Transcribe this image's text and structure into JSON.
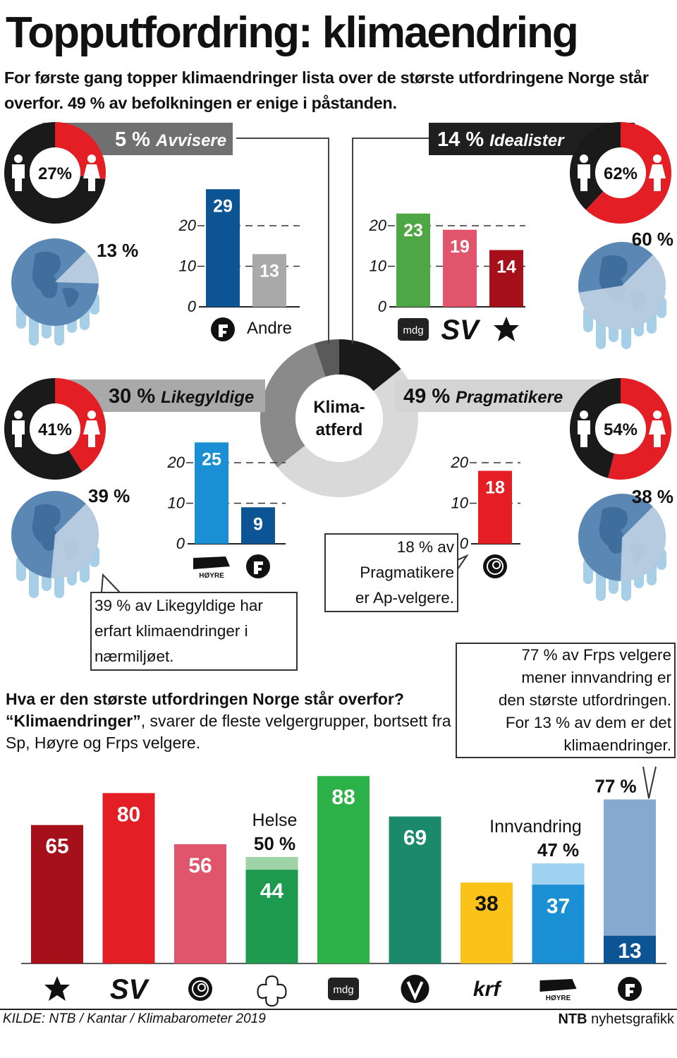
{
  "header": {
    "title": "Topputfordring: klimaendring",
    "subtitle": "For første gang topper klimaendringer lista over de største utfordringene Norge står overfor. 49 % av befolkningen er enige i påstanden."
  },
  "colors": {
    "red": "#e31e24",
    "black": "#1a1a1a",
    "panel_dark": "#1f1f1f",
    "panel_grey": "#a9a9a9",
    "frp_blue": "#0c5494",
    "grey_bar": "#a9a9a9",
    "mdg_green": "#4ea744",
    "sv_pink": "#e0546c",
    "rodt_red": "#a5101b",
    "hoyre_blue": "#1a8fd3",
    "ap_red": "#e51d24",
    "ocean": "#5a87b4",
    "land": "#c7d7e6",
    "ice": "#a8cfe8"
  },
  "center_donut": {
    "label_line1": "Klima-",
    "label_line2": "atferd",
    "segments": [
      {
        "name": "Avvisere",
        "value": 5,
        "color": "#5a5a5a"
      },
      {
        "name": "Idealister",
        "value": 14,
        "color": "#1a1a1a"
      },
      {
        "name": "Pragmatikere",
        "value": 49,
        "color": "#d9d9d9"
      },
      {
        "name": "Likegyldige",
        "value": 30,
        "color": "#8a8a8a"
      }
    ]
  },
  "groups": {
    "avvisere": {
      "banner_pct": "5 %",
      "banner_name": "Avvisere",
      "male_share": 73,
      "female_pct_label": "27%",
      "climate_experience_pct": "13 %",
      "experience_value": 13
    },
    "idealister": {
      "banner_pct": "14 %",
      "banner_name": "Idealister",
      "male_share": 38,
      "female_pct_label": "62%",
      "climate_experience_pct": "60 %",
      "experience_value": 60
    },
    "likegyldige": {
      "banner_pct": "30 %",
      "banner_name": "Likegyldige",
      "male_share": 59,
      "female_pct_label": "41%",
      "climate_experience_pct": "39 %",
      "experience_value": 39
    },
    "pragmatikere": {
      "banner_pct": "49 %",
      "banner_name": "Pragmatikere",
      "male_share": 46,
      "female_pct_label": "54%",
      "climate_experience_pct": "38 %",
      "experience_value": 38
    }
  },
  "callouts": {
    "ap": [
      "18 % av",
      "Pragmatikere",
      "er Ap-velgere."
    ],
    "likegyldige": [
      "39 % av Likegyldige har",
      "erfart klimaendringer i",
      "nærmiljøet."
    ],
    "frp": [
      "77 % av Frps velgere",
      "mener innvandring er",
      "den største utfordringen.",
      "For 13 % av dem er det",
      "klimaendringer."
    ]
  },
  "bottom_question": {
    "question": "Hva er den største utfordringen Norge står overfor?",
    "answer_quote": "“Klimaendringer”",
    "answer_rest": ", svarer  de fleste velgergrupper, bortsett fra Sp, Høyre og Frps velgere."
  },
  "chart_data": [
    {
      "type": "bar",
      "group": "Avvisere",
      "categories": [
        "Frp",
        "Andre"
      ],
      "values": [
        29,
        13
      ],
      "colors": [
        "#0c5494",
        "#a9a9a9"
      ],
      "ylim": [
        0,
        30
      ],
      "ticks": [
        "0",
        "10",
        "20"
      ],
      "category_labels": [
        "",
        "Andre"
      ],
      "grid": "dashed"
    },
    {
      "type": "bar",
      "group": "Idealister",
      "categories": [
        "MDG",
        "SV",
        "Rødt"
      ],
      "values": [
        23,
        19,
        14
      ],
      "colors": [
        "#4ea744",
        "#e0546c",
        "#a5101b"
      ],
      "ylim": [
        0,
        30
      ],
      "ticks": [
        "0",
        "10",
        "20"
      ],
      "category_labels": [
        "mdg",
        "SV",
        ""
      ],
      "grid": "dashed"
    },
    {
      "type": "bar",
      "group": "Likegyldige",
      "categories": [
        "Høyre",
        "Frp"
      ],
      "values": [
        25,
        9
      ],
      "colors": [
        "#1a8fd3",
        "#0c5494"
      ],
      "ylim": [
        0,
        30
      ],
      "ticks": [
        "0",
        "10",
        "20"
      ],
      "category_labels": [
        "HØYRE",
        ""
      ],
      "grid": "dashed"
    },
    {
      "type": "bar",
      "group": "Pragmatikere",
      "categories": [
        "Ap"
      ],
      "values": [
        18
      ],
      "colors": [
        "#e51d24"
      ],
      "ylim": [
        0,
        30
      ],
      "ticks": [
        "0",
        "10",
        "20"
      ],
      "category_labels": [
        ""
      ],
      "grid": "dashed"
    },
    {
      "type": "bar",
      "title": "Hva er den største utfordringen Norge står overfor?",
      "categories": [
        "Rødt",
        "SV",
        "Ap",
        "Sp",
        "MDG",
        "V",
        "KrF",
        "Høyre",
        "Frp"
      ],
      "category_labels": [
        "",
        "SV",
        "",
        "",
        "mdg",
        "V",
        "krf",
        "HØYRE",
        ""
      ],
      "values": [
        65,
        80,
        56,
        44,
        88,
        69,
        38,
        37,
        13
      ],
      "colors": [
        "#a5101b",
        "#e31e24",
        "#e0546c",
        "#1d9a4e",
        "#2db24a",
        "#1b8a6b",
        "#fbc21a",
        "#1a8fd3",
        "#0c5494"
      ],
      "value_label_colors": [
        "#ffffff",
        "#ffffff",
        "#ffffff",
        "#ffffff",
        "#ffffff",
        "#ffffff",
        "#111111",
        "#ffffff",
        "#ffffff"
      ],
      "extra": [
        {
          "category": "Sp",
          "label_top": "Helse",
          "label_value": "50 %",
          "value": 50,
          "color": "#9ed3a8"
        },
        {
          "category": "Høyre",
          "label_top": "Innvandring",
          "label_value": "47 %",
          "value": 47,
          "color": "#9fd2f0"
        },
        {
          "category": "Frp",
          "label_top": "",
          "label_value": "77 %",
          "value": 77,
          "color": "#86a9cf"
        }
      ],
      "ylim": [
        0,
        90
      ]
    }
  ],
  "footer": {
    "source": "KILDE: NTB / Kantar / Klimabarometer 2019",
    "credit_brand": "NTB",
    "credit_rest": "nyhetsgrafikk"
  }
}
